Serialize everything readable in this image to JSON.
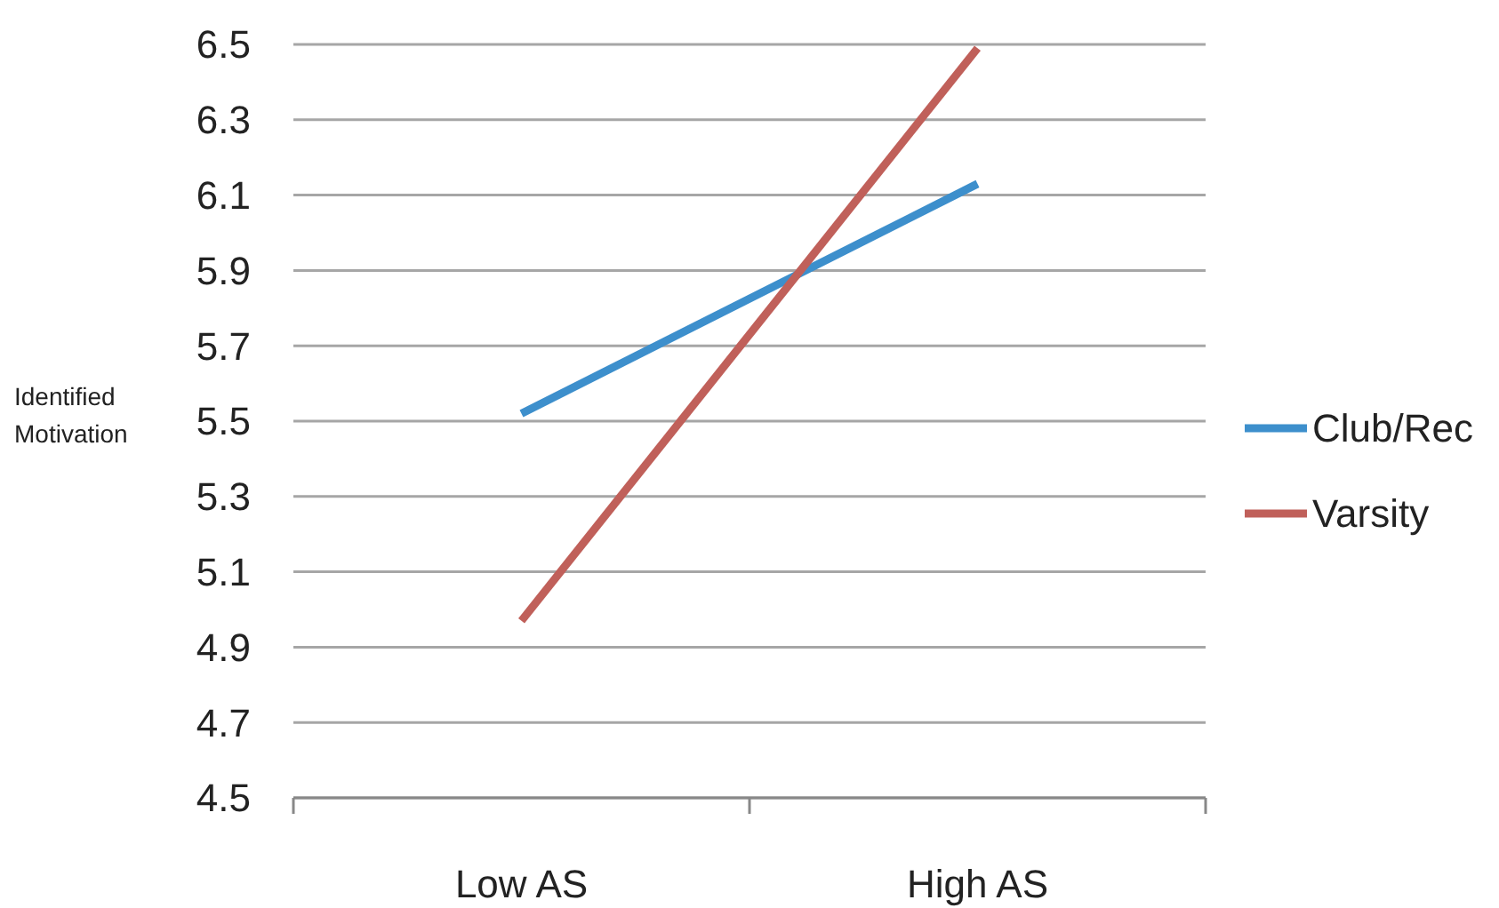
{
  "chart_data": {
    "type": "line",
    "ylabel": "Identified Motivation",
    "categories": [
      "Low AS",
      "High AS"
    ],
    "series": [
      {
        "name": "Club/Rec",
        "color": "#3d8fcc",
        "values": [
          5.52,
          6.13
        ]
      },
      {
        "name": "Varsity",
        "color": "#c0605a",
        "values": [
          4.97,
          6.49
        ]
      }
    ],
    "ylim": [
      4.5,
      6.5
    ],
    "yticks": [
      4.5,
      4.7,
      4.9,
      5.1,
      5.3,
      5.5,
      5.7,
      5.9,
      6.1,
      6.3,
      6.5
    ],
    "grid": "y",
    "legend": "right",
    "marker": "none"
  }
}
